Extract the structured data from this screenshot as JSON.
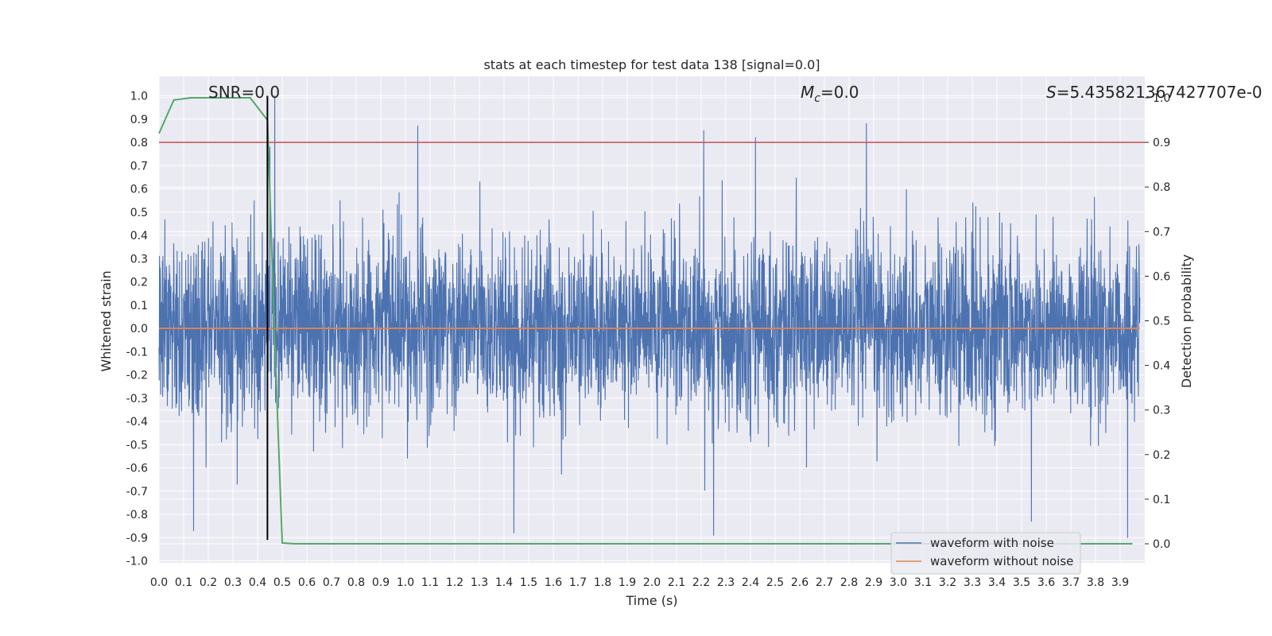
{
  "chart_data": {
    "type": "line",
    "title": "stats at each timestep for test data 138 [signal=0.0]",
    "xlabel": "Time (s)",
    "ylabel": "Whitened strain",
    "y2label": "Detection probability",
    "xlim": [
      0.0,
      4.0
    ],
    "ylim": [
      -1.09,
      1.09
    ],
    "y2lim": [
      -0.05,
      1.0
    ],
    "x_ticks": [
      0.0,
      0.1,
      0.2,
      0.3,
      0.4,
      0.5,
      0.6,
      0.7,
      0.8,
      0.9,
      1.0,
      1.1,
      1.2,
      1.3,
      1.4,
      1.5,
      1.6,
      1.7,
      1.8,
      1.9,
      2.0,
      2.1,
      2.2,
      2.3,
      2.4,
      2.5,
      2.6,
      2.7,
      2.8,
      2.9,
      3.0,
      3.1,
      3.2,
      3.3,
      3.4,
      3.5,
      3.6,
      3.7,
      3.8,
      3.9
    ],
    "y_ticks": [
      -1.0,
      -0.9,
      -0.8,
      -0.7,
      -0.6,
      -0.5,
      -0.4,
      -0.3,
      -0.2,
      -0.1,
      0.0,
      0.1,
      0.2,
      0.3,
      0.4,
      0.5,
      0.6,
      0.7,
      0.8,
      0.9,
      1.0
    ],
    "y2_ticks": [
      0.0,
      0.1,
      0.2,
      0.3,
      0.4,
      0.5,
      0.6,
      0.7,
      0.8,
      0.9,
      1.0
    ],
    "grid": true,
    "legend_position": "bottom-right",
    "annotations": {
      "snr": "SNR=0.0",
      "mc_symbol": "M",
      "mc_sub": "c",
      "mc_value": "=0.0",
      "s_symbol": "S",
      "s_value": "=5.435821367427707e-0"
    },
    "series": [
      {
        "name": "waveform with noise",
        "axis": "left",
        "color": "#4c72b0",
        "description_points": "dense whitened noise sampled over 0-4 s, amplitude mostly within ±0.6, peaks up to ~1.0",
        "peaks": [
          [
            0.47,
            1.0
          ],
          [
            0.45,
            0.78
          ],
          [
            1.05,
            0.87
          ],
          [
            2.21,
            0.85
          ],
          [
            2.42,
            0.82
          ],
          [
            2.87,
            0.88
          ],
          [
            0.14,
            -0.87
          ],
          [
            1.44,
            -0.88
          ],
          [
            2.25,
            -0.89
          ],
          [
            3.93,
            -0.9
          ],
          [
            3.54,
            -0.83
          ]
        ]
      },
      {
        "name": "waveform without noise",
        "axis": "left",
        "color": "#dd8452",
        "x": [
          0.0,
          4.0
        ],
        "y": [
          0.0,
          0.0
        ]
      },
      {
        "name": "detection probability",
        "axis": "right",
        "color": "#55a868",
        "x": [
          0.0,
          0.06,
          0.13,
          0.2,
          0.3,
          0.37,
          0.44,
          0.47,
          0.5,
          0.55,
          1.0,
          2.0,
          3.0,
          3.95
        ],
        "y": [
          0.92,
          0.995,
          1.0,
          1.0,
          1.0,
          1.0,
          0.95,
          0.45,
          0.002,
          0.0,
          0.0,
          0.0,
          0.0,
          0.0
        ]
      }
    ],
    "threshold": {
      "axis": "right",
      "value": 0.9,
      "color": "#c44e52"
    },
    "marker_line": {
      "x": 0.44,
      "y_from": -0.91,
      "y_to": 1.0,
      "color": "#000000"
    }
  }
}
